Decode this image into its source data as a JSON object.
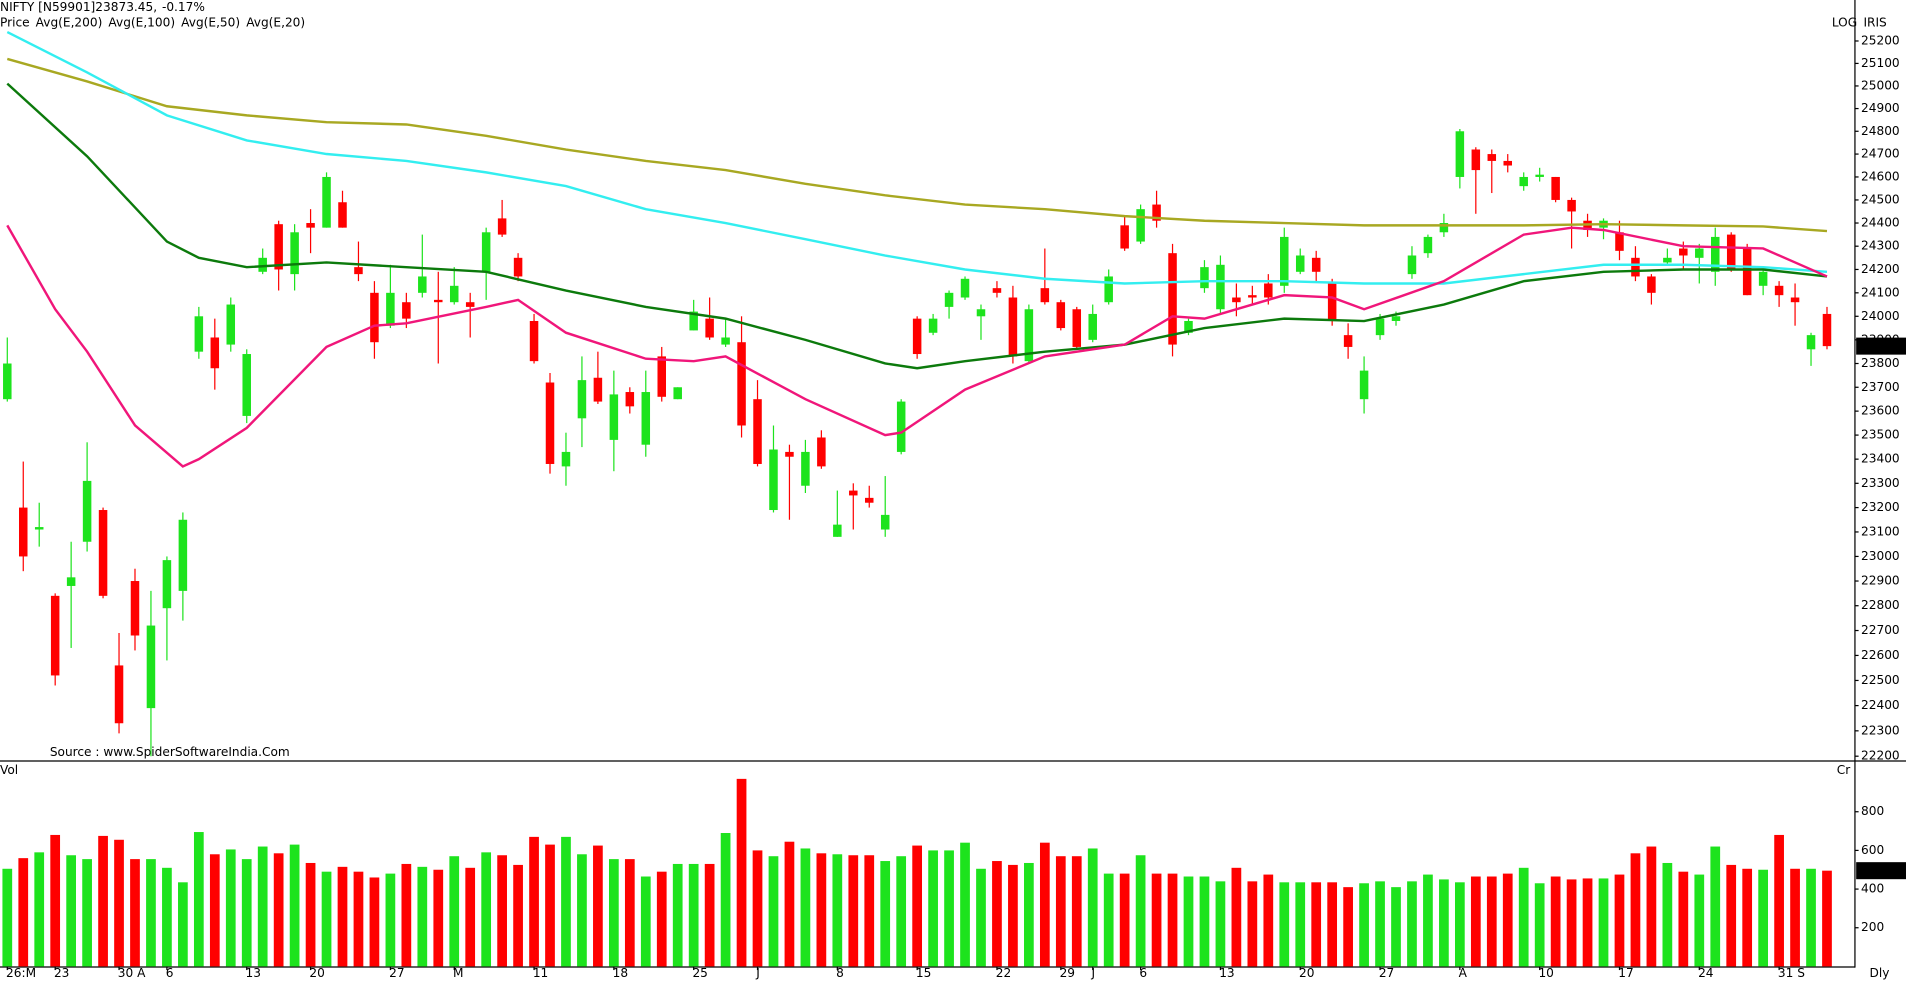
{
  "chart_data": [
    {
      "type": "candlestick",
      "title": "NIFTY [N59901]23873.45,",
      "change": "-0.17%",
      "name": "Price",
      "log": true,
      "up_color": "#1de31d",
      "down_color": "#ff0000",
      "title_color": "#000000",
      "change_color": "#ff0000",
      "name_color": "#19b519",
      "ylim": [
        22186,
        25340
      ],
      "yticks": [
        22200,
        22300,
        22400,
        22500,
        22600,
        22700,
        22800,
        22900,
        23000,
        23100,
        23200,
        23300,
        23400,
        23500,
        23600,
        23700,
        23800,
        23900,
        24000,
        24100,
        24200,
        24300,
        24400,
        24500,
        24600,
        24700,
        24800,
        24900,
        25000,
        25100,
        25200
      ],
      "open": [
        23650,
        23200,
        23110,
        22840,
        22880,
        23060,
        23190,
        22560,
        22900,
        22390,
        22790,
        22860,
        23850,
        23910,
        23880,
        23580,
        24190,
        24395,
        24180,
        24400,
        24380,
        24490,
        24210,
        24100,
        23960,
        24060,
        24100,
        24070,
        24060,
        24060,
        24190,
        24420,
        24250,
        23980,
        23720,
        23370,
        23570,
        23740,
        23480,
        23680,
        23460,
        23830,
        23650,
        23940,
        23990,
        23880,
        23890,
        23650,
        23190,
        23430,
        23290,
        23490,
        23080,
        23270,
        23240,
        23110,
        23430,
        23990,
        23930,
        24040,
        24080,
        24000,
        24120,
        24080,
        23810,
        24120,
        24060,
        24030,
        23900,
        24060,
        24390,
        24320,
        24480,
        24270,
        23930,
        24120,
        24030,
        24080,
        24090,
        24140,
        24130,
        24190,
        24250,
        24140,
        23920,
        23650,
        23920,
        23980,
        24180,
        24270,
        24360,
        24600,
        24720,
        24700,
        24670,
        24560,
        24600,
        24600,
        24500,
        24410,
        24380,
        24360,
        24250,
        24170,
        24230,
        24290,
        24250,
        24190,
        24350,
        24290,
        24130,
        24130,
        24080,
        23860,
        24010
      ],
      "high": [
        23910,
        23390,
        23220,
        22850,
        23060,
        23470,
        23200,
        22690,
        22950,
        22860,
        23000,
        23180,
        24040,
        23990,
        24080,
        23860,
        24290,
        24410,
        24395,
        24460,
        24620,
        24540,
        24320,
        24150,
        24220,
        24100,
        24350,
        24190,
        24210,
        24100,
        24380,
        24500,
        24270,
        24010,
        23760,
        23510,
        23830,
        23850,
        23770,
        23700,
        23770,
        23870,
        23700,
        24070,
        24080,
        23990,
        24000,
        23730,
        23540,
        23460,
        23480,
        23520,
        23270,
        23300,
        23290,
        23330,
        23650,
        24000,
        24010,
        24110,
        24170,
        24050,
        24150,
        24130,
        24050,
        24290,
        24070,
        24040,
        24050,
        24200,
        24430,
        24480,
        24540,
        24310,
        23990,
        24240,
        24260,
        24140,
        24130,
        24180,
        24380,
        24290,
        24280,
        24160,
        23970,
        23830,
        24010,
        24020,
        24300,
        24350,
        24440,
        24810,
        24730,
        24720,
        24700,
        24620,
        24640,
        24600,
        24510,
        24440,
        24420,
        24410,
        24300,
        24180,
        24290,
        24320,
        24310,
        24380,
        24360,
        24310,
        24200,
        24150,
        24140,
        23930,
        24040
      ],
      "low": [
        23640,
        22940,
        23040,
        22480,
        22630,
        23020,
        22830,
        22290,
        22620,
        22200,
        22580,
        22740,
        23820,
        23690,
        23850,
        23550,
        24180,
        24110,
        24110,
        24270,
        24380,
        24380,
        24150,
        23820,
        23950,
        23950,
        24080,
        23800,
        24050,
        23910,
        24070,
        24340,
        24150,
        23800,
        23340,
        23290,
        23450,
        23630,
        23350,
        23590,
        23410,
        23640,
        23650,
        23940,
        23900,
        23870,
        23490,
        23370,
        23180,
        23150,
        23260,
        23360,
        23080,
        23110,
        23200,
        23080,
        23420,
        23820,
        23920,
        23990,
        24070,
        23900,
        24080,
        23800,
        23800,
        24050,
        23940,
        23860,
        23890,
        24050,
        24280,
        24310,
        24380,
        23830,
        23920,
        24100,
        24010,
        24000,
        24050,
        24050,
        24100,
        24180,
        24150,
        23960,
        23820,
        23590,
        23900,
        23960,
        24160,
        24250,
        24340,
        24550,
        24440,
        24530,
        24620,
        24540,
        24580,
        24490,
        24290,
        24340,
        24330,
        24240,
        24150,
        24050,
        24220,
        24200,
        24140,
        24130,
        24190,
        24090,
        24090,
        24040,
        23960,
        23790,
        23860
      ],
      "close": [
        23800,
        23000,
        23120,
        22520,
        22915,
        23310,
        22840,
        22330,
        22680,
        22720,
        22985,
        23150,
        24000,
        23780,
        24050,
        23840,
        24250,
        24200,
        24360,
        24380,
        24600,
        24380,
        24180,
        23890,
        24100,
        23990,
        24170,
        24060,
        24130,
        24040,
        24360,
        24350,
        24170,
        23810,
        23380,
        23430,
        23730,
        23640,
        23670,
        23620,
        23680,
        23660,
        23700,
        24020,
        23910,
        23910,
        23540,
        23380,
        23440,
        23410,
        23430,
        23370,
        23130,
        23250,
        23220,
        23170,
        23640,
        23840,
        23990,
        24100,
        24160,
        24030,
        24100,
        23830,
        24030,
        24060,
        23950,
        23870,
        24010,
        24170,
        24290,
        24460,
        24410,
        23880,
        23980,
        24210,
        24220,
        24060,
        24080,
        24080,
        24340,
        24260,
        24190,
        23980,
        23870,
        23770,
        23990,
        24000,
        24260,
        24340,
        24400,
        24800,
        24630,
        24670,
        24650,
        24600,
        24610,
        24500,
        24450,
        24370,
        24410,
        24280,
        24170,
        24100,
        24250,
        24260,
        24290,
        24340,
        24200,
        24090,
        24190,
        24090,
        24060,
        23920,
        23873.45
      ],
      "price_label": "23873.45",
      "series": [
        {
          "name": "Avg(E,200)",
          "color": "#a8a822",
          "x": [
            0,
            5,
            10,
            15,
            20,
            25,
            30,
            35,
            40,
            45,
            50,
            55,
            60,
            65,
            70,
            75,
            80,
            85,
            90,
            95,
            100,
            105,
            110,
            114
          ],
          "values": [
            25120,
            25020,
            24910,
            24870,
            24840,
            24830,
            24780,
            24720,
            24670,
            24630,
            24570,
            24520,
            24480,
            24460,
            24430,
            24410,
            24400,
            24390,
            24390,
            24390,
            24395,
            24390,
            24385,
            24365
          ]
        },
        {
          "name": "Avg(E,100)",
          "color": "#33eef0",
          "x": [
            0,
            5,
            10,
            15,
            20,
            25,
            30,
            35,
            40,
            45,
            50,
            55,
            60,
            65,
            70,
            75,
            80,
            85,
            90,
            95,
            100,
            105,
            110,
            114
          ],
          "values": [
            25240,
            25060,
            24870,
            24760,
            24700,
            24670,
            24620,
            24560,
            24460,
            24400,
            24330,
            24260,
            24200,
            24160,
            24140,
            24150,
            24150,
            24140,
            24140,
            24180,
            24220,
            24220,
            24210,
            24190
          ]
        },
        {
          "name": "Avg(E,50)",
          "color": "#0c7a0c",
          "x": [
            0,
            5,
            10,
            12,
            15,
            20,
            25,
            30,
            35,
            40,
            45,
            50,
            55,
            57,
            60,
            65,
            70,
            75,
            80,
            85,
            90,
            95,
            100,
            105,
            110,
            114
          ],
          "values": [
            25010,
            24690,
            24320,
            24250,
            24210,
            24230,
            24210,
            24190,
            24110,
            24040,
            23990,
            23900,
            23800,
            23780,
            23810,
            23850,
            23880,
            23950,
            23990,
            23980,
            24050,
            24150,
            24190,
            24200,
            24200,
            24170
          ]
        },
        {
          "name": "Avg(E,20)",
          "color": "#f0167a",
          "x": [
            0,
            3,
            5,
            8,
            11,
            12,
            15,
            20,
            23,
            25,
            30,
            32,
            35,
            40,
            43,
            45,
            50,
            55,
            56,
            60,
            65,
            70,
            73,
            75,
            80,
            83,
            85,
            90,
            95,
            98,
            100,
            105,
            110,
            114
          ],
          "values": [
            24390,
            24030,
            23850,
            23540,
            23370,
            23400,
            23530,
            23870,
            23960,
            23970,
            24040,
            24070,
            23930,
            23820,
            23810,
            23830,
            23650,
            23500,
            23510,
            23690,
            23830,
            23880,
            24000,
            23990,
            24090,
            24080,
            24030,
            24150,
            24350,
            24380,
            24370,
            24300,
            24290,
            24170
          ]
        }
      ],
      "annotations": {
        "scale": "LOG",
        "symbol": "IRIS",
        "source": "Source : www.SpiderSoftwareIndia.Com"
      }
    },
    {
      "type": "bar",
      "title": "Vol",
      "title_color": "#19b519",
      "unit": "Cr",
      "period": "Dly",
      "ylim": [
        0,
        1050
      ],
      "yticks": [
        200,
        400,
        600,
        800
      ],
      "categories": [
        "26:M",
        null,
        null,
        "23",
        null,
        null,
        null,
        "30 A",
        null,
        null,
        "6",
        null,
        null,
        null,
        null,
        "13",
        null,
        null,
        null,
        "20",
        null,
        null,
        null,
        null,
        "27",
        null,
        null,
        null,
        "M",
        null,
        null,
        null,
        null,
        "11",
        null,
        null,
        null,
        null,
        "18",
        null,
        null,
        null,
        null,
        "25",
        null,
        null,
        null,
        "J",
        null,
        null,
        null,
        null,
        "8",
        null,
        null,
        null,
        null,
        "15",
        null,
        null,
        null,
        null,
        "22",
        null,
        null,
        null,
        "29",
        null,
        "J",
        null,
        null,
        "6",
        null,
        null,
        null,
        null,
        "13",
        null,
        null,
        null,
        null,
        "20",
        null,
        null,
        null,
        null,
        "27",
        null,
        null,
        null,
        null,
        "A",
        null,
        null,
        null,
        null,
        "10",
        null,
        null,
        null,
        null,
        "17",
        null,
        null,
        null,
        null,
        "24",
        null,
        null,
        null,
        null,
        "31 S",
        null,
        null,
        null
      ],
      "values": [
        505,
        560,
        590,
        680,
        575,
        555,
        675,
        655,
        555,
        555,
        510,
        435,
        695,
        580,
        605,
        555,
        620,
        585,
        630,
        535,
        490,
        515,
        490,
        460,
        480,
        530,
        515,
        500,
        570,
        510,
        590,
        575,
        525,
        670,
        630,
        670,
        580,
        625,
        555,
        555,
        465,
        490,
        530,
        530,
        530,
        690,
        970,
        600,
        570,
        645,
        610,
        585,
        580,
        575,
        575,
        545,
        570,
        625,
        600,
        600,
        640,
        505,
        545,
        525,
        535,
        640,
        570,
        570,
        610,
        480,
        480,
        575,
        480,
        480,
        465,
        465,
        440,
        510,
        440,
        475,
        435,
        435,
        435,
        435,
        410,
        430,
        440,
        410,
        440,
        475,
        450,
        435,
        465,
        465,
        480,
        510,
        430,
        465,
        450,
        455,
        455,
        475,
        585,
        620,
        535,
        490,
        475,
        620,
        525,
        505,
        500,
        680,
        505,
        505,
        495.19
      ],
      "value_label": "495.19"
    }
  ]
}
